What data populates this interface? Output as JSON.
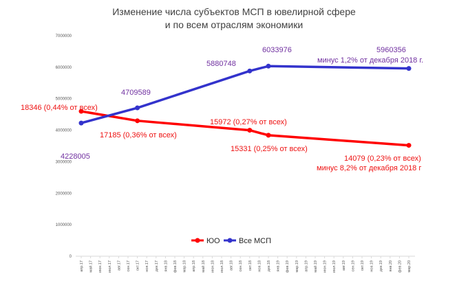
{
  "chart_data": {
    "type": "line",
    "title": [
      "Изменение числа субъектов МСП в ювелирной сфере",
      "и по всем отраслям экономики"
    ],
    "ylim": [
      0,
      7000000
    ],
    "y_ticks": [
      "0",
      "1000000",
      "2000000",
      "3000000",
      "4000000",
      "5000000",
      "6000000",
      "7000000"
    ],
    "categories": [
      "апр.17",
      "май.17",
      "июн.17",
      "июл.17",
      "авг.17",
      "сен.17",
      "окт.17",
      "ноя.17",
      "дек.17",
      "янв.18",
      "фев.18",
      "мар.18",
      "апр.18",
      "май.18",
      "июн.18",
      "июл.18",
      "авг.18",
      "сен.18",
      "окт.18",
      "ноя.18",
      "дек.18",
      "янв.19",
      "фев.19",
      "мар.19",
      "апр.19",
      "май.19",
      "июн.19",
      "июл.19",
      "авг.19",
      "сен.19",
      "окт.19",
      "ноя.19",
      "дек.19",
      "янв.20",
      "фев.20",
      "мар.20"
    ],
    "grid": false,
    "legend_position": "bottom-center",
    "series": [
      {
        "name": "ЮО",
        "color": "#ff0000",
        "scaled_axis_note": "",
        "points": [
          {
            "x": "апр.17",
            "y": 4600000
          },
          {
            "x": "окт.17",
            "y": 4300000
          },
          {
            "x": "окт.18",
            "y": 4000000
          },
          {
            "x": "дек.18",
            "y": 3840000
          },
          {
            "x": "мар.20",
            "y": 3520000
          }
        ]
      },
      {
        "name": "Все МСП",
        "color": "#3333cc",
        "points": [
          {
            "x": "апр.17",
            "y": 4228005
          },
          {
            "x": "окт.17",
            "y": 4709589
          },
          {
            "x": "окт.18",
            "y": 5880748
          },
          {
            "x": "дек.18",
            "y": 6033976
          },
          {
            "x": "мар.20",
            "y": 5960356
          }
        ]
      }
    ],
    "annotations": {
      "red": [
        "18346 (0,44% от всех)",
        "17185 (0,36% от всех)",
        "15972 (0,27% от всех)",
        "15331 (0,25% от всех)",
        "14079 (0,23% от всех)",
        "минус 8,2% от декабря 2018 г"
      ],
      "blue": [
        "4228005",
        "4709589",
        "5880748",
        "6033976",
        "5960356",
        "минус 1,2% от декабря 2018 г."
      ]
    }
  }
}
